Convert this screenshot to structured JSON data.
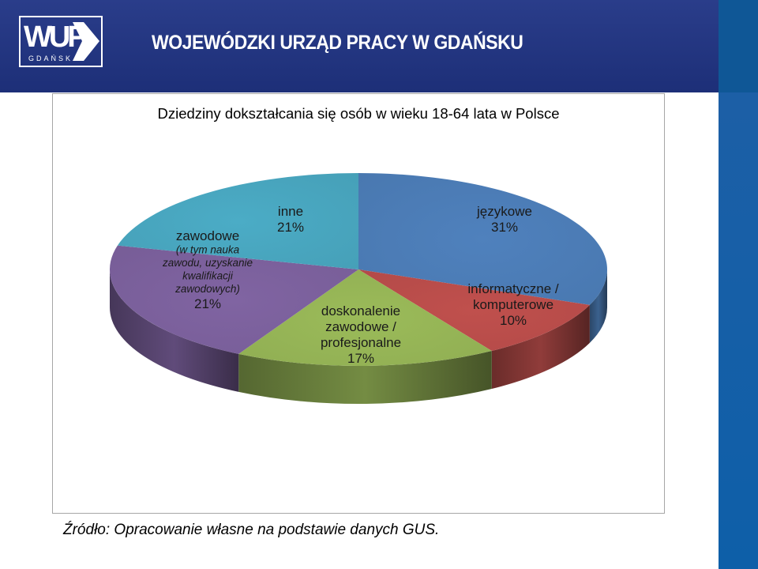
{
  "header": {
    "logo_text": "WUP",
    "logo_sub": "GDAŃSK",
    "title": "WOJEWÓDZKI URZĄD PRACY W GDAŃSKU"
  },
  "colors": {
    "header": "#1d2f78",
    "side_bar": "#0e5fa8"
  },
  "chart_data": {
    "type": "pie",
    "title": "Dziedziny dokształcania  się osób  w wieku 18-64 lata w Polsce",
    "slices": [
      {
        "label": [
          "językowe"
        ],
        "value": 31,
        "value_label": "31%",
        "color": "#4f81bd"
      },
      {
        "label": [
          "informatyczne /",
          "komputerowe"
        ],
        "value": 10,
        "value_label": "10%",
        "color": "#c0504d"
      },
      {
        "label": [
          "doskonalenie",
          "zawodowe /",
          "profesjonalne"
        ],
        "value": 17,
        "value_label": "17%",
        "color": "#9bbb59"
      },
      {
        "label": [
          "zawodowe"
        ],
        "sublabel": [
          "(w tym nauka",
          "zawodu, uzyskanie",
          "kwalifikacji",
          "zawodowych)"
        ],
        "value": 21,
        "value_label": "21%",
        "color": "#8064a2"
      },
      {
        "label": [
          "inne"
        ],
        "value": 21,
        "value_label": "21%",
        "color": "#4bacc6"
      }
    ],
    "legend": "none"
  },
  "source_note": "Źródło: Opracowanie własne na podstawie danych GUS."
}
